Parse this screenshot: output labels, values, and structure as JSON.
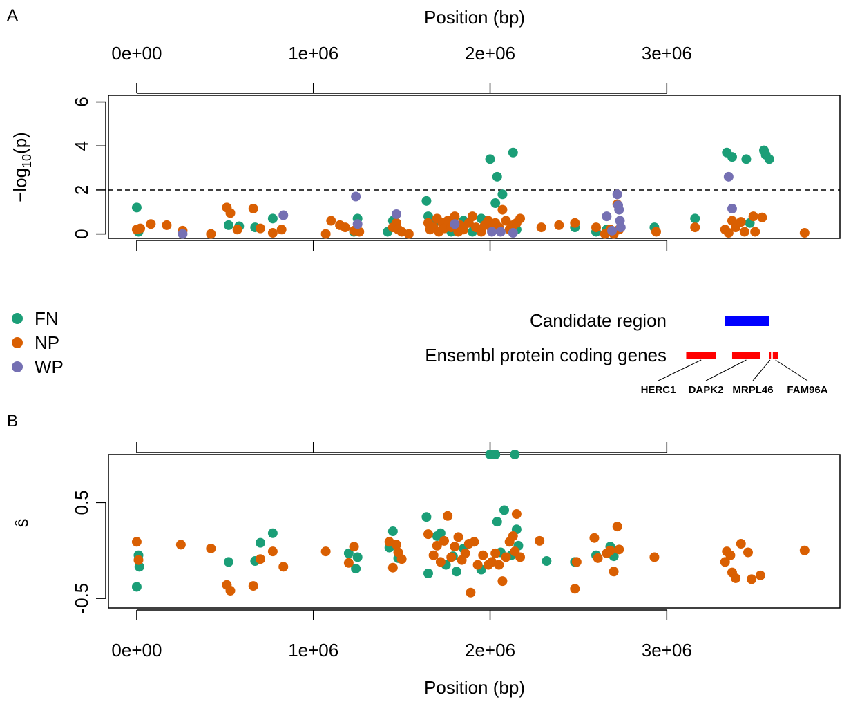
{
  "panel_labels": {
    "a": "A",
    "b": "B"
  },
  "axis_titles": {
    "top_x": "Position (bp)",
    "bottom_x": "Position (bp)",
    "a_y_main": "−log",
    "a_y_sub": "10",
    "a_y_tail": "(p)",
    "b_y": "ŝ"
  },
  "colors": {
    "FN": "#1b9e77",
    "NP": "#d95f02",
    "WP": "#7570b3",
    "candidate": "#0000ff",
    "genes": "#ff0000"
  },
  "legend": [
    {
      "label": "FN",
      "color": "#1b9e77"
    },
    {
      "label": "NP",
      "color": "#d95f02"
    },
    {
      "label": "WP",
      "color": "#7570b3"
    }
  ],
  "tracks": {
    "candidate_label": "Candidate region",
    "genes_label": "Ensembl protein coding genes",
    "candidate_region": [
      3330000,
      3580000
    ],
    "genes": [
      {
        "name": "HERC1",
        "start": 3110000,
        "end": 3280000
      },
      {
        "name": "DAPK2",
        "start": 3370000,
        "end": 3530000
      },
      {
        "name": "MRPL46",
        "start": 3580000,
        "end": 3590000
      },
      {
        "name": "FAM96A",
        "start": 3600000,
        "end": 3630000
      }
    ]
  },
  "chart_data": [
    {
      "type": "scatter",
      "panel": "A",
      "xlabel": "Position (bp)",
      "ylabel": "−log10(p)",
      "xlim": [
        -160000,
        3980000
      ],
      "ylim": [
        -0.2,
        6.3
      ],
      "x_ticks": [
        0,
        1000000,
        2000000,
        3000000
      ],
      "x_tick_labels": [
        "0e+00",
        "1e+06",
        "2e+06",
        "3e+06"
      ],
      "y_ticks": [
        0,
        2,
        4,
        6
      ],
      "y_tick_labels": [
        "0",
        "2",
        "4",
        "6"
      ],
      "threshold": 2,
      "series": [
        {
          "name": "FN",
          "points": [
            [
              0,
              1.2
            ],
            [
              10000,
              0.1
            ],
            [
              520000,
              0.4
            ],
            [
              580000,
              0.35
            ],
            [
              670000,
              0.3
            ],
            [
              770000,
              0.7
            ],
            [
              1230000,
              0.1
            ],
            [
              1250000,
              0.7
            ],
            [
              1420000,
              0.1
            ],
            [
              1450000,
              0.6
            ],
            [
              1640000,
              1.5
            ],
            [
              1650000,
              0.8
            ],
            [
              1700000,
              0.6
            ],
            [
              1780000,
              0.1
            ],
            [
              1850000,
              0.6
            ],
            [
              1900000,
              0.1
            ],
            [
              1950000,
              0.7
            ],
            [
              2000000,
              3.4
            ],
            [
              2030000,
              1.4
            ],
            [
              2040000,
              2.6
            ],
            [
              2070000,
              1.8
            ],
            [
              2130000,
              3.7
            ],
            [
              2150000,
              0.2
            ],
            [
              2480000,
              0.3
            ],
            [
              2600000,
              0.1
            ],
            [
              2660000,
              0.2
            ],
            [
              2700000,
              0.1
            ],
            [
              2930000,
              0.3
            ],
            [
              3160000,
              0.7
            ],
            [
              3340000,
              3.7
            ],
            [
              3370000,
              3.5
            ],
            [
              3450000,
              3.4
            ],
            [
              3470000,
              0.5
            ],
            [
              3550000,
              3.8
            ],
            [
              3560000,
              3.6
            ],
            [
              3580000,
              3.4
            ]
          ]
        },
        {
          "name": "NP",
          "points": [
            [
              0,
              0.2
            ],
            [
              20000,
              0.25
            ],
            [
              80000,
              0.45
            ],
            [
              170000,
              0.4
            ],
            [
              260000,
              0.15
            ],
            [
              420000,
              0.0
            ],
            [
              510000,
              1.2
            ],
            [
              530000,
              0.95
            ],
            [
              570000,
              0.2
            ],
            [
              660000,
              1.15
            ],
            [
              700000,
              0.25
            ],
            [
              770000,
              0.05
            ],
            [
              820000,
              0.2
            ],
            [
              1070000,
              0.0
            ],
            [
              1100000,
              0.6
            ],
            [
              1150000,
              0.4
            ],
            [
              1180000,
              0.3
            ],
            [
              1230000,
              0.15
            ],
            [
              1260000,
              0.1
            ],
            [
              1450000,
              0.3
            ],
            [
              1470000,
              0.5
            ],
            [
              1480000,
              0.2
            ],
            [
              1500000,
              0.1
            ],
            [
              1540000,
              0.0
            ],
            [
              1650000,
              0.5
            ],
            [
              1660000,
              0.2
            ],
            [
              1680000,
              0.3
            ],
            [
              1700000,
              0.7
            ],
            [
              1710000,
              0.1
            ],
            [
              1730000,
              0.5
            ],
            [
              1740000,
              0.25
            ],
            [
              1760000,
              0.6
            ],
            [
              1780000,
              0.3
            ],
            [
              1800000,
              0.8
            ],
            [
              1820000,
              0.1
            ],
            [
              1830000,
              0.4
            ],
            [
              1850000,
              0.2
            ],
            [
              1880000,
              0.5
            ],
            [
              1900000,
              0.8
            ],
            [
              1920000,
              0.3
            ],
            [
              1950000,
              0.1
            ],
            [
              1970000,
              0.4
            ],
            [
              1990000,
              0.6
            ],
            [
              2010000,
              0.2
            ],
            [
              2030000,
              0.5
            ],
            [
              2050000,
              0.3
            ],
            [
              2070000,
              1.1
            ],
            [
              2090000,
              0.6
            ],
            [
              2110000,
              0.2
            ],
            [
              2130000,
              0.4
            ],
            [
              2150000,
              0.5
            ],
            [
              2170000,
              0.7
            ],
            [
              2290000,
              0.3
            ],
            [
              2390000,
              0.4
            ],
            [
              2480000,
              0.5
            ],
            [
              2600000,
              0.3
            ],
            [
              2650000,
              0.0
            ],
            [
              2680000,
              0.2
            ],
            [
              2700000,
              0.0
            ],
            [
              2720000,
              1.35
            ],
            [
              2730000,
              0.2
            ],
            [
              2940000,
              0.1
            ],
            [
              3160000,
              0.3
            ],
            [
              3330000,
              0.2
            ],
            [
              3350000,
              0.05
            ],
            [
              3370000,
              0.6
            ],
            [
              3390000,
              0.3
            ],
            [
              3420000,
              0.55
            ],
            [
              3440000,
              0.1
            ],
            [
              3490000,
              0.8
            ],
            [
              3500000,
              0.1
            ],
            [
              3540000,
              0.75
            ],
            [
              3780000,
              0.05
            ]
          ]
        },
        {
          "name": "WP",
          "points": [
            [
              260000,
              0.0
            ],
            [
              830000,
              0.85
            ],
            [
              1240000,
              1.7
            ],
            [
              1250000,
              0.45
            ],
            [
              1470000,
              0.9
            ],
            [
              1800000,
              0.45
            ],
            [
              2010000,
              0.1
            ],
            [
              2060000,
              0.1
            ],
            [
              2130000,
              0.05
            ],
            [
              2660000,
              0.8
            ],
            [
              2690000,
              0.15
            ],
            [
              2720000,
              1.8
            ],
            [
              2725000,
              1.3
            ],
            [
              2730000,
              1.1
            ],
            [
              2735000,
              0.6
            ],
            [
              2740000,
              0.3
            ],
            [
              3350000,
              2.6
            ],
            [
              3370000,
              1.15
            ]
          ]
        }
      ]
    },
    {
      "type": "scatter",
      "panel": "B",
      "xlabel": "Position (bp)",
      "ylabel": "ŝ",
      "xlim": [
        -160000,
        3980000
      ],
      "ylim": [
        -0.6,
        1.0
      ],
      "x_ticks": [
        0,
        1000000,
        2000000,
        3000000
      ],
      "x_tick_labels": [
        "0e+00",
        "1e+06",
        "2e+06",
        "3e+06"
      ],
      "y_ticks": [
        -0.5,
        0.5
      ],
      "y_tick_labels": [
        "-0.5",
        "0.5"
      ],
      "series": [
        {
          "name": "FN",
          "points": [
            [
              10000,
              -0.05
            ],
            [
              15000,
              -0.17
            ],
            [
              0,
              -0.38
            ],
            [
              520000,
              -0.12
            ],
            [
              670000,
              -0.11
            ],
            [
              700000,
              0.08
            ],
            [
              770000,
              0.18
            ],
            [
              1200000,
              -0.03
            ],
            [
              1240000,
              -0.19
            ],
            [
              1250000,
              -0.07
            ],
            [
              1430000,
              0.03
            ],
            [
              1450000,
              0.2
            ],
            [
              1480000,
              -0.08
            ],
            [
              1640000,
              0.35
            ],
            [
              1650000,
              -0.24
            ],
            [
              1700000,
              0.15
            ],
            [
              1720000,
              0.18
            ],
            [
              1750000,
              -0.15
            ],
            [
              1790000,
              -0.06
            ],
            [
              1810000,
              -0.22
            ],
            [
              1850000,
              0.02
            ],
            [
              1950000,
              -0.2
            ],
            [
              2000000,
              1.0
            ],
            [
              2030000,
              1.0
            ],
            [
              2040000,
              0.3
            ],
            [
              2060000,
              -0.02
            ],
            [
              2080000,
              0.42
            ],
            [
              2120000,
              -0.05
            ],
            [
              2140000,
              1.0
            ],
            [
              2150000,
              0.22
            ],
            [
              2160000,
              0.05
            ],
            [
              2320000,
              -0.11
            ],
            [
              2480000,
              -0.12
            ],
            [
              2600000,
              -0.05
            ],
            [
              2680000,
              0.04
            ],
            [
              2700000,
              -0.06
            ]
          ]
        },
        {
          "name": "NP",
          "points": [
            [
              0,
              0.09
            ],
            [
              10000,
              -0.1
            ],
            [
              250000,
              0.06
            ],
            [
              420000,
              0.02
            ],
            [
              510000,
              -0.36
            ],
            [
              530000,
              -0.42
            ],
            [
              660000,
              -0.37
            ],
            [
              700000,
              -0.09
            ],
            [
              770000,
              -0.01
            ],
            [
              830000,
              -0.17
            ],
            [
              1070000,
              -0.01
            ],
            [
              1200000,
              -0.13
            ],
            [
              1230000,
              0.04
            ],
            [
              1430000,
              0.09
            ],
            [
              1450000,
              -0.18
            ],
            [
              1470000,
              0.06
            ],
            [
              1480000,
              -0.02
            ],
            [
              1500000,
              -0.09
            ],
            [
              1650000,
              0.17
            ],
            [
              1680000,
              -0.05
            ],
            [
              1700000,
              0.05
            ],
            [
              1720000,
              -0.12
            ],
            [
              1740000,
              0.1
            ],
            [
              1760000,
              0.36
            ],
            [
              1780000,
              -0.07
            ],
            [
              1800000,
              0.04
            ],
            [
              1820000,
              0.14
            ],
            [
              1840000,
              -0.1
            ],
            [
              1860000,
              -0.03
            ],
            [
              1880000,
              0.07
            ],
            [
              1890000,
              -0.44
            ],
            [
              1910000,
              0.09
            ],
            [
              1930000,
              -0.15
            ],
            [
              1960000,
              -0.05
            ],
            [
              1990000,
              -0.15
            ],
            [
              2010000,
              -0.12
            ],
            [
              2030000,
              -0.03
            ],
            [
              2050000,
              -0.15
            ],
            [
              2070000,
              -0.32
            ],
            [
              2090000,
              -0.07
            ],
            [
              2110000,
              0.09
            ],
            [
              2130000,
              0.15
            ],
            [
              2140000,
              -0.01
            ],
            [
              2150000,
              0.38
            ],
            [
              2170000,
              -0.07
            ],
            [
              2280000,
              0.1
            ],
            [
              2480000,
              -0.4
            ],
            [
              2490000,
              -0.12
            ],
            [
              2590000,
              0.13
            ],
            [
              2610000,
              -0.08
            ],
            [
              2660000,
              -0.03
            ],
            [
              2680000,
              0.0
            ],
            [
              2700000,
              -0.22
            ],
            [
              2720000,
              0.25
            ],
            [
              2730000,
              0.01
            ],
            [
              2930000,
              -0.07
            ],
            [
              3330000,
              -0.12
            ],
            [
              3340000,
              -0.01
            ],
            [
              3360000,
              -0.05
            ],
            [
              3370000,
              -0.23
            ],
            [
              3390000,
              -0.29
            ],
            [
              3420000,
              0.07
            ],
            [
              3460000,
              -0.02
            ],
            [
              3480000,
              -0.3
            ],
            [
              3530000,
              -0.26
            ],
            [
              3780000,
              0.0
            ]
          ]
        }
      ]
    }
  ]
}
